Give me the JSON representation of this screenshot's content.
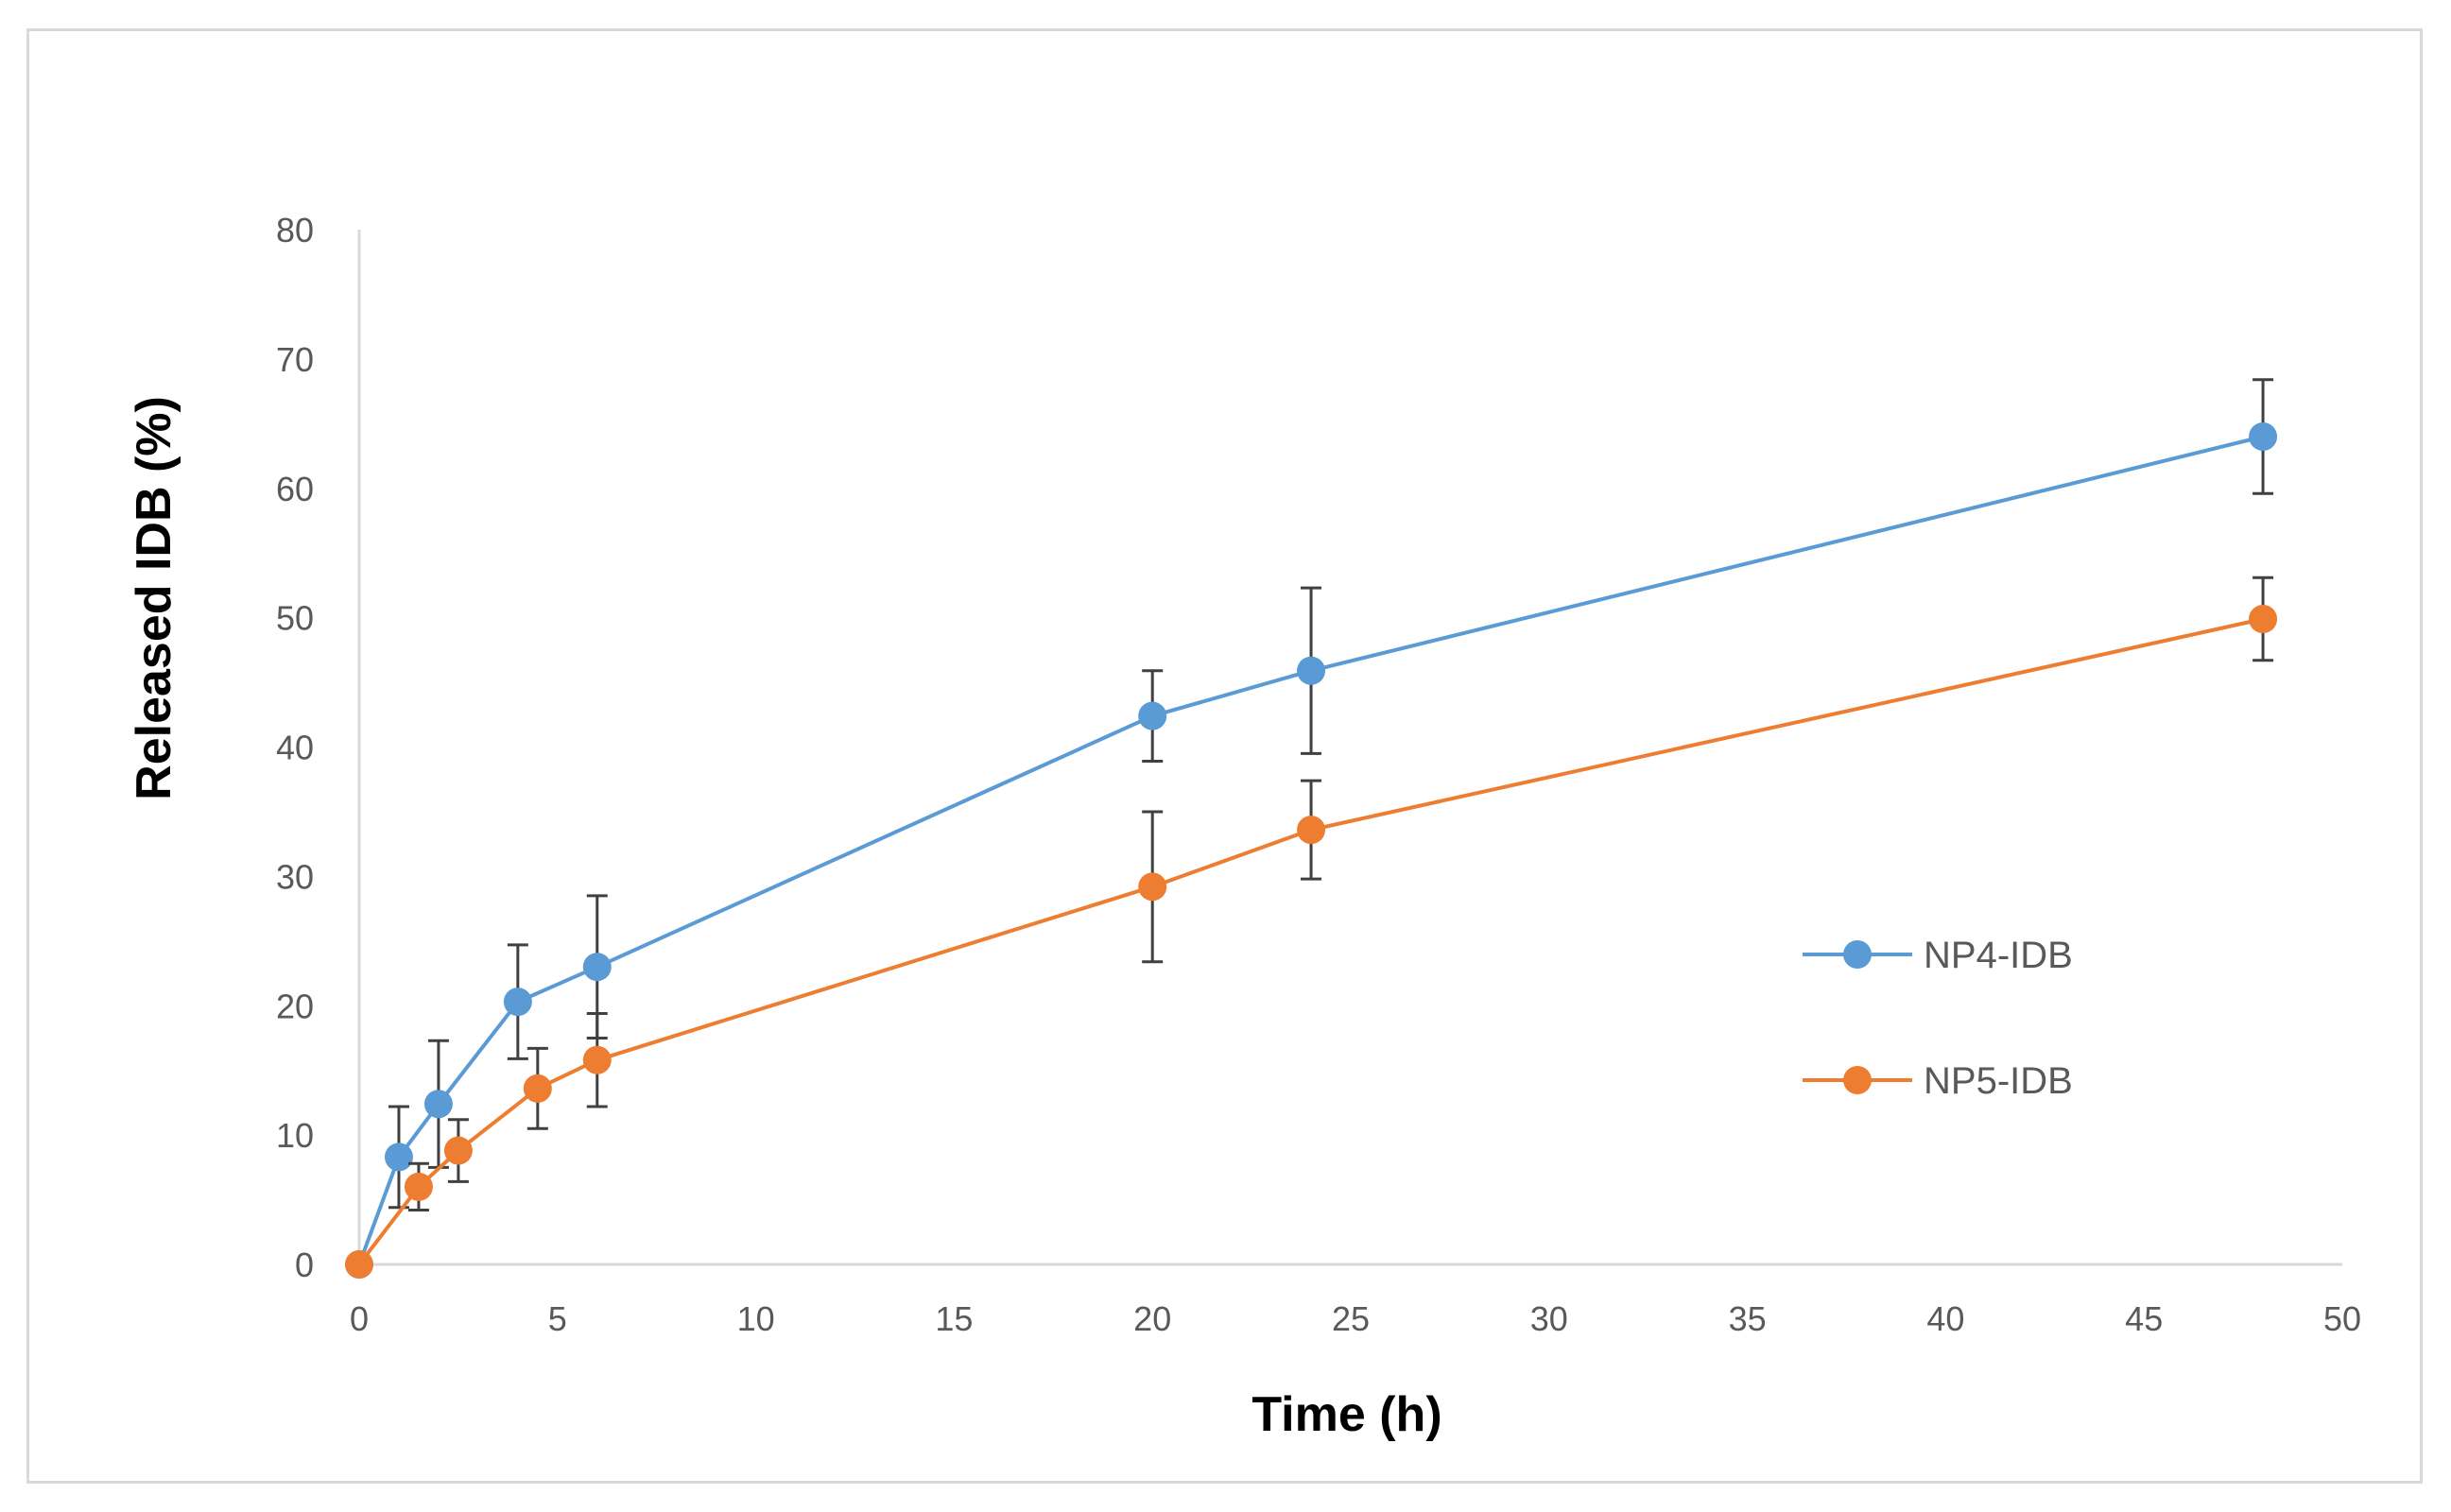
{
  "chart_data": {
    "type": "line",
    "title": "",
    "xlabel": "Time (h)",
    "ylabel": "Released IDB (%)",
    "xlim": [
      0,
      50
    ],
    "ylim": [
      0,
      80
    ],
    "x_ticks": [
      "0",
      "5",
      "10",
      "15",
      "20",
      "25",
      "30",
      "35",
      "40",
      "45",
      "50"
    ],
    "y_ticks": [
      "0",
      "10",
      "20",
      "30",
      "40",
      "50",
      "60",
      "70",
      "80"
    ],
    "grid": false,
    "legend_position": "right",
    "series": [
      {
        "name": "NP4-IDB",
        "color": "#5b9bd5",
        "x": [
          0,
          1,
          2,
          4,
          6,
          20,
          24,
          48
        ],
        "y": [
          0,
          8.3,
          12.4,
          20.3,
          23,
          42.4,
          45.9,
          64
        ],
        "err": [
          0,
          3.9,
          4.9,
          4.4,
          5.5,
          3.5,
          6.4,
          4.4
        ]
      },
      {
        "name": "NP5-IDB",
        "color": "#ed7d31",
        "x": [
          0,
          1.5,
          2.5,
          4.5,
          6,
          20,
          24,
          48
        ],
        "y": [
          0,
          6,
          8.8,
          13.6,
          15.8,
          29.2,
          33.6,
          49.9
        ],
        "err": [
          0,
          1.8,
          2.4,
          3.1,
          3.6,
          5.8,
          3.8,
          3.2
        ]
      }
    ]
  }
}
